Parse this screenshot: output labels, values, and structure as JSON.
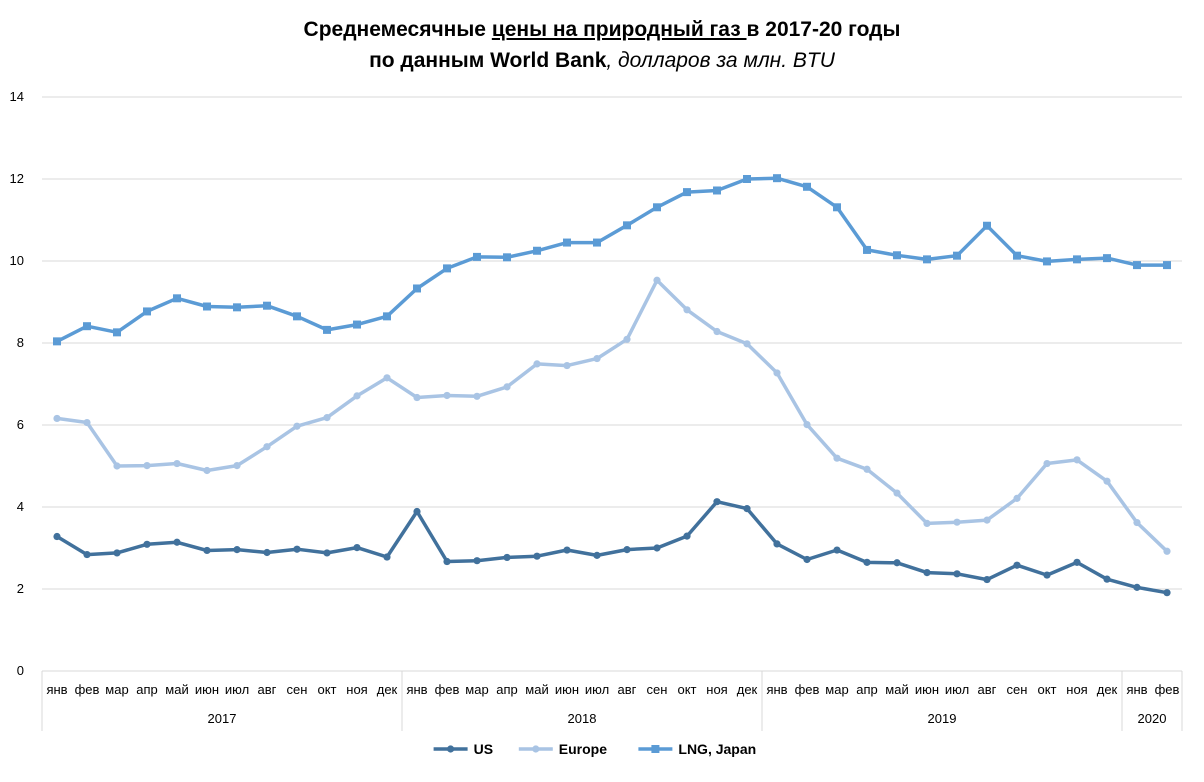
{
  "chart_data": {
    "type": "line",
    "title": {
      "part1": "Среднемесячные ",
      "part2_underlined": "цены на природный газ ",
      "part3": "в 2017-20 годы",
      "line2_bold": "по данным World Bank",
      "line2_italic": ", долларов за млн. BTU"
    },
    "ylim": [
      0,
      14
    ],
    "yticks": [
      "0",
      "2",
      "4",
      "6",
      "8",
      "10",
      "12",
      "14"
    ],
    "grid": true,
    "legend_position": "bottom",
    "months": [
      "янв",
      "фев",
      "мар",
      "апр",
      "май",
      "июн",
      "июл",
      "авг",
      "сен",
      "окт",
      "ноя",
      "дек",
      "янв",
      "фев",
      "мар",
      "апр",
      "май",
      "июн",
      "июл",
      "авг",
      "сен",
      "окт",
      "ноя",
      "дек",
      "янв",
      "фев",
      "мар",
      "апр",
      "май",
      "июн",
      "июл",
      "авг",
      "сен",
      "окт",
      "ноя",
      "дек",
      "янв",
      "фев"
    ],
    "years": [
      {
        "label": "2017",
        "count": 12
      },
      {
        "label": "2018",
        "count": 12
      },
      {
        "label": "2019",
        "count": 12
      },
      {
        "label": "2020",
        "count": 2
      }
    ],
    "series": [
      {
        "name": "US",
        "color": "#41719c",
        "marker": "circle",
        "values": [
          3.28,
          2.84,
          2.88,
          3.09,
          3.14,
          2.94,
          2.96,
          2.89,
          2.97,
          2.88,
          3.01,
          2.78,
          3.89,
          2.67,
          2.69,
          2.77,
          2.8,
          2.95,
          2.82,
          2.96,
          3.0,
          3.29,
          4.13,
          3.96,
          3.1,
          2.72,
          2.95,
          2.65,
          2.64,
          2.4,
          2.37,
          2.23,
          2.58,
          2.34,
          2.65,
          2.24,
          2.04,
          1.91
        ]
      },
      {
        "name": "Europe",
        "color": "#a9c4e4",
        "marker": "circle",
        "values": [
          6.16,
          6.06,
          5.0,
          5.01,
          5.06,
          4.89,
          5.01,
          5.47,
          5.97,
          6.18,
          6.71,
          7.15,
          6.67,
          6.72,
          6.7,
          6.93,
          7.49,
          7.45,
          7.62,
          8.09,
          9.53,
          8.81,
          8.28,
          7.98,
          7.27,
          6.01,
          5.19,
          4.92,
          4.34,
          3.6,
          3.63,
          3.68,
          4.21,
          5.06,
          5.15,
          4.63,
          3.62,
          2.92
        ]
      },
      {
        "name": "LNG, Japan",
        "color": "#5b9bd5",
        "marker": "square",
        "values": [
          8.04,
          8.41,
          8.26,
          8.77,
          9.09,
          8.89,
          8.87,
          8.91,
          8.65,
          8.32,
          8.45,
          8.65,
          9.33,
          9.82,
          10.1,
          10.09,
          10.25,
          10.45,
          10.45,
          10.87,
          11.31,
          11.68,
          11.72,
          12.0,
          12.02,
          11.81,
          11.31,
          10.27,
          10.14,
          10.04,
          10.13,
          10.86,
          10.13,
          9.99,
          10.04,
          10.07,
          9.9,
          9.9
        ]
      }
    ]
  }
}
